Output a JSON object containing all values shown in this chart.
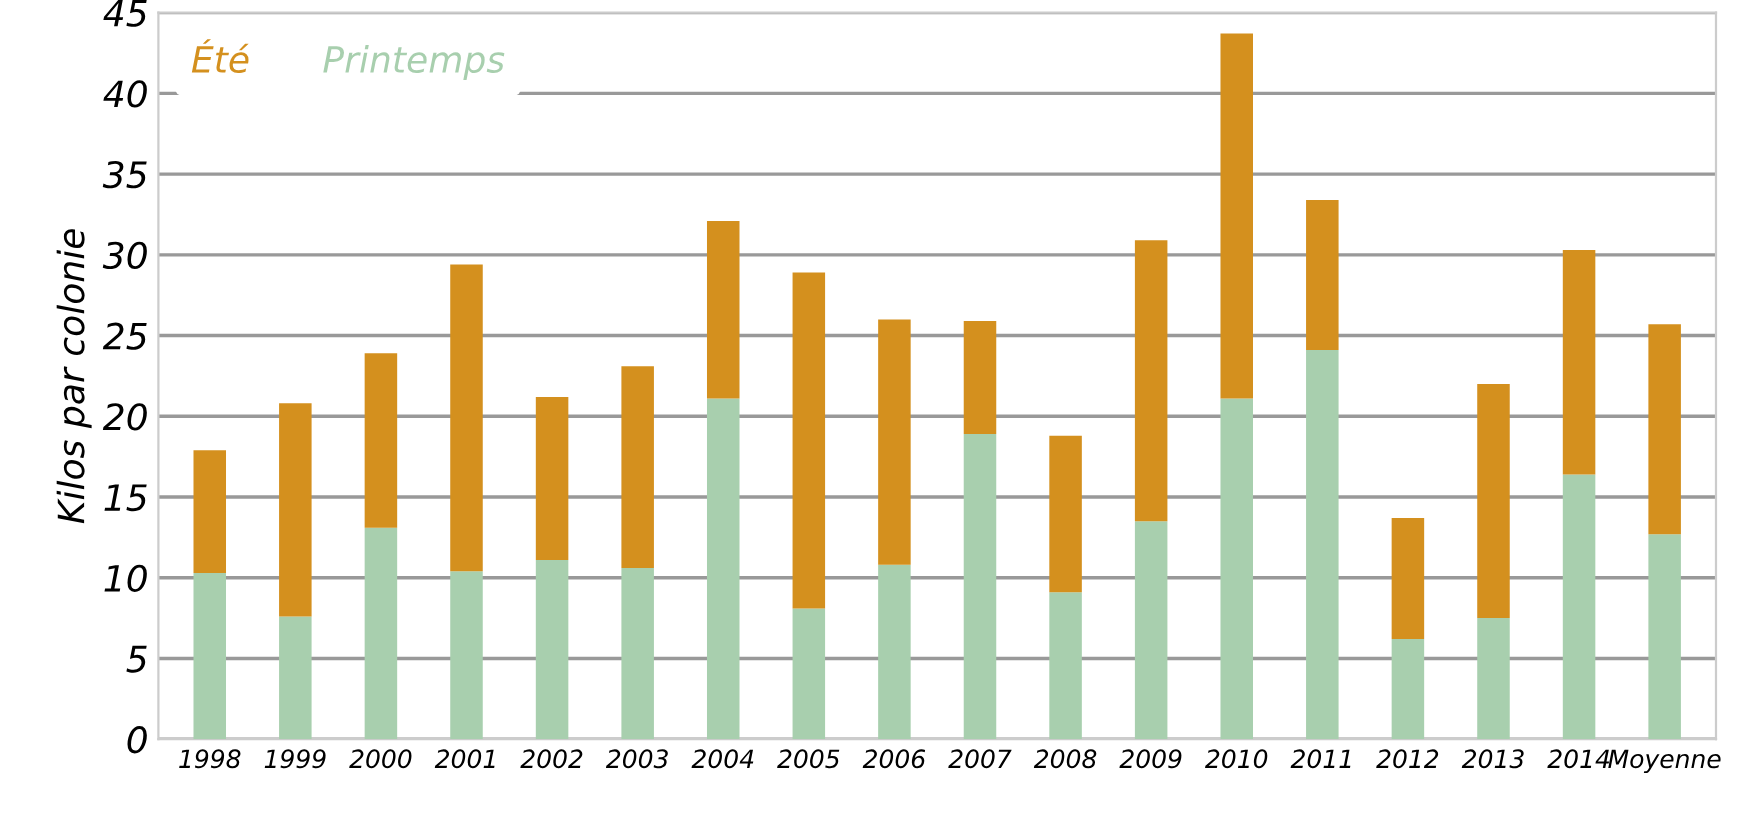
{
  "chart_data": {
    "type": "bar",
    "stacked": true,
    "ylabel": "Kilos par colonie",
    "categories": [
      "1998",
      "1999",
      "2000",
      "2001",
      "2002",
      "2003",
      "2004",
      "2005",
      "2006",
      "2007",
      "2008",
      "2009",
      "2010",
      "2011",
      "2012",
      "2013",
      "2014",
      "Moyenne"
    ],
    "series": [
      {
        "name": "Printemps",
        "color": "#a8cfae",
        "values": [
          10.3,
          7.6,
          13.1,
          10.4,
          11.1,
          10.6,
          21.1,
          8.1,
          10.8,
          18.9,
          9.1,
          13.5,
          21.1,
          24.1,
          6.2,
          7.5,
          16.4,
          12.7
        ]
      },
      {
        "name": "Été",
        "color": "#d4901e",
        "values": [
          7.6,
          13.2,
          10.8,
          19.0,
          10.1,
          12.5,
          11.0,
          20.8,
          15.2,
          7.0,
          9.7,
          17.4,
          22.6,
          9.3,
          7.5,
          14.5,
          13.9,
          13.0
        ]
      }
    ],
    "ylim": [
      0,
      45
    ],
    "yticks": [
      0,
      5,
      10,
      15,
      20,
      25,
      30,
      35,
      40,
      45
    ],
    "grid": "y",
    "legend": "top left"
  }
}
